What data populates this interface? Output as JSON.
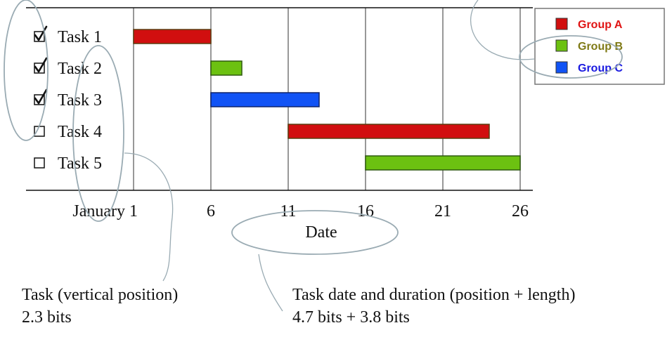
{
  "chart_data": {
    "type": "gantt",
    "title": "",
    "xlabel": "Date",
    "ylabel": "",
    "x_ticks": [
      "January 1",
      "6",
      "11",
      "16",
      "21",
      "26"
    ],
    "tasks": [
      {
        "name": "Task 1",
        "start": 1,
        "end": 6,
        "group": "Group A",
        "checked": true
      },
      {
        "name": "Task 2",
        "start": 6,
        "end": 8,
        "group": "Group B",
        "checked": true
      },
      {
        "name": "Task 3",
        "start": 6,
        "end": 13,
        "group": "Group C",
        "checked": true
      },
      {
        "name": "Task 4",
        "start": 11,
        "end": 24,
        "group": "Group A",
        "checked": false
      },
      {
        "name": "Task 5",
        "start": 16,
        "end": 26,
        "group": "Group B",
        "checked": false
      }
    ],
    "legend": [
      {
        "name": "Group A",
        "color": "#d10f0f",
        "text_color": "#e01414"
      },
      {
        "name": "Group B",
        "color": "#6cc111",
        "text_color": "#7f7a16"
      },
      {
        "name": "Group C",
        "color": "#1153f5",
        "text_color": "#1a1ae0"
      }
    ],
    "legend_position": "top-right",
    "x_range": [
      1,
      26
    ],
    "grid": true
  },
  "annotations": {
    "task_label": "Task (vertical position)",
    "task_bits": "2.3 bits",
    "date_label": "Task date and duration (position + length)",
    "date_bits": "4.7 bits + 3.8 bits"
  }
}
